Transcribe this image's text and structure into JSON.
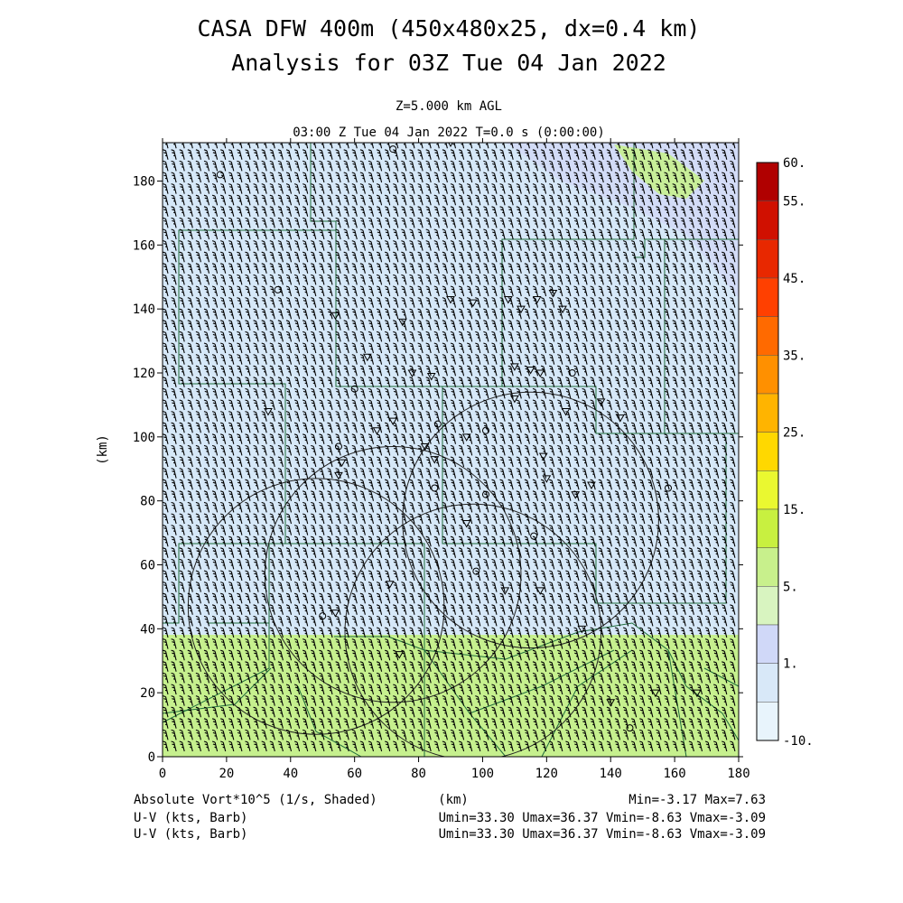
{
  "chart_data": {
    "type": "heatmap",
    "title": "CASA DFW 400m (450x480x25, dx=0.4 km)",
    "subtitle": "Analysis for 03Z Tue 04 Jan 2022",
    "level_label": "Z=5.000 km AGL",
    "time_label": "03:00 Z Tue 04 Jan 2022   T=0.0 s (0:00:00)",
    "xlabel": "(km)",
    "ylabel": "(km)",
    "xlim": [
      0,
      180
    ],
    "ylim": [
      0,
      192
    ],
    "x_ticks": [
      "0",
      "20",
      "40",
      "60",
      "80",
      "100",
      "120",
      "140",
      "160",
      "180"
    ],
    "y_ticks": [
      "0",
      "20",
      "40",
      "60",
      "80",
      "100",
      "120",
      "140",
      "160",
      "180"
    ],
    "colorbar": {
      "labels": [
        "60.",
        "55.",
        "45.",
        "35.",
        "25.",
        "15.",
        "5.",
        "1.",
        "-10."
      ],
      "colors": [
        "#b00000",
        "#d01000",
        "#e82800",
        "#ff4000",
        "#ff6a00",
        "#ff9000",
        "#ffb400",
        "#ffd800",
        "#eaf830",
        "#c8f040",
        "#c8f08c",
        "#d8f4c0",
        "#d0d8f8",
        "#d8e8f8",
        "#e8f4fc"
      ]
    },
    "field_regions": [
      {
        "name": "lower-band",
        "y_range": [
          0,
          38
        ],
        "value": "5 to 15",
        "color": "#c6f08e"
      },
      {
        "name": "upper-area",
        "y_range": [
          38,
          192
        ],
        "value": "-10 to 1",
        "color": "#d4e6f8"
      },
      {
        "name": "top-right-area",
        "y_range": [
          150,
          192
        ],
        "value": "1 to 5",
        "color": "#d2d8f6"
      }
    ],
    "wind": {
      "u_kts_range": [
        33.3,
        36.37
      ],
      "v_kts_range": [
        -8.63,
        -3.09
      ],
      "display": "barbs"
    },
    "field_name": "Absolute Vort*10^5 (1/s, Shaded)",
    "min_max": "Min=-3.17 Max=7.63",
    "barb_line1": "U-V (kts, Barb)",
    "barb_line2": "U-V (kts, Barb)",
    "uv_stats1": "Umin=33.30 Umax=36.37 Vmin=-8.63 Vmax=-3.09",
    "uv_stats2": "Umin=33.30 Umax=36.37 Vmin=-8.63 Vmax=-3.09",
    "bottom_xlabel": "(km)",
    "radar_rings": [
      {
        "cx": 97,
        "cy": 39,
        "r": 40
      },
      {
        "cx": 72,
        "cy": 57,
        "r": 40
      },
      {
        "cx": 48,
        "cy": 47,
        "r": 40
      },
      {
        "cx": 115,
        "cy": 74,
        "r": 40
      }
    ]
  }
}
